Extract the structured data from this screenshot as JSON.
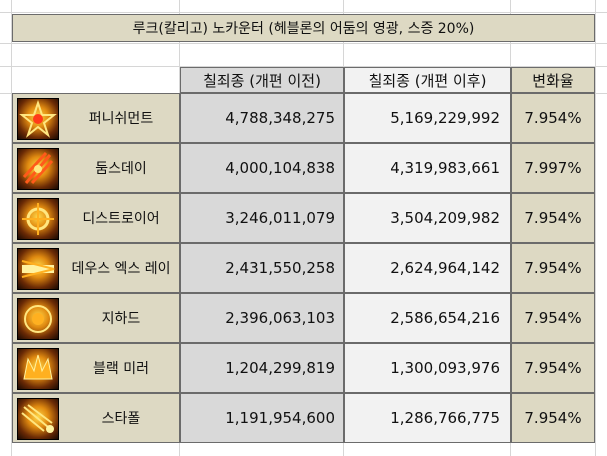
{
  "title": "루크(칼리고) 노카운터 (헤블론의 어둠의 영광, 스증 20%)",
  "headers": {
    "before": "칠죄종 (개편 이전)",
    "after": "칠죄종 (개편 이후)",
    "change": "변화율"
  },
  "rows": [
    {
      "skill": "퍼니쉬먼트",
      "before": "4,788,348,275",
      "after": "5,169,229,992",
      "change": "7.954%",
      "icon": "punishment-skill-icon"
    },
    {
      "skill": "둠스데이",
      "before": "4,000,104,838",
      "after": "4,319,983,661",
      "change": "7.997%",
      "icon": "doomsday-skill-icon"
    },
    {
      "skill": "디스트로이어",
      "before": "3,246,011,079",
      "after": "3,504,209,982",
      "change": "7.954%",
      "icon": "destroyer-skill-icon"
    },
    {
      "skill": "데우스 엑스 레이",
      "before": "2,431,550,258",
      "after": "2,624,964,142",
      "change": "7.954%",
      "icon": "deus-ex-ray-skill-icon"
    },
    {
      "skill": "지하드",
      "before": "2,396,063,103",
      "after": "2,586,654,216",
      "change": "7.954%",
      "icon": "jihad-skill-icon"
    },
    {
      "skill": "블랙 미러",
      "before": "1,204,299,819",
      "after": "1,300,093,976",
      "change": "7.954%",
      "icon": "black-mirror-skill-icon"
    },
    {
      "skill": "스타폴",
      "before": "1,191,954,600",
      "after": "1,286,766,775",
      "change": "7.954%",
      "icon": "starfall-skill-icon"
    }
  ]
}
